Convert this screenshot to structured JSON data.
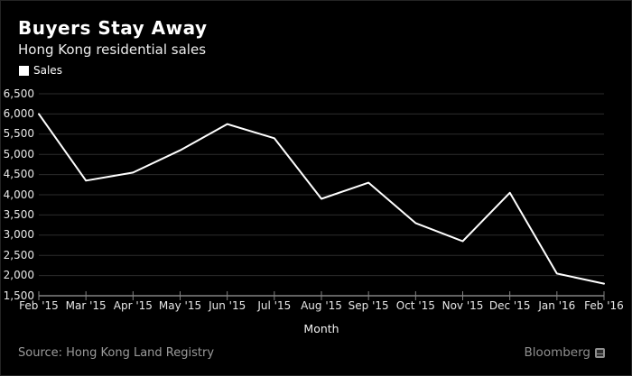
{
  "header": {
    "title": "Buyers Stay Away",
    "subtitle": "Hong Kong residential sales",
    "legend": {
      "label": "Sales",
      "swatch_color": "#ffffff"
    }
  },
  "chart_data": {
    "type": "line",
    "title": "Buyers Stay Away",
    "subtitle": "Hong Kong residential sales",
    "categories": [
      "Feb '15",
      "Mar '15",
      "Apr '15",
      "May '15",
      "Jun '15",
      "Jul '15",
      "Aug '15",
      "Sep '15",
      "Oct '15",
      "Nov '15",
      "Dec '15",
      "Jan '16",
      "Feb '16"
    ],
    "series": [
      {
        "name": "Sales",
        "color": "#ffffff",
        "values": [
          6000,
          4350,
          4550,
          5100,
          5750,
          5400,
          3900,
          4300,
          3300,
          2850,
          4050,
          2050,
          1800
        ]
      }
    ],
    "xlabel": "Month",
    "ylabel": "",
    "ylim": [
      1500,
      6500
    ],
    "y_tick_step": 500,
    "y_tick_labels_top_to_bottom": [
      "6,500",
      "6,000",
      "5,500",
      "5,000",
      "4,500",
      "4,000",
      "3,500",
      "3,000",
      "2,500",
      "2,000",
      "1,500"
    ],
    "grid": "horizontal",
    "legend_position": "top-left",
    "colors": {
      "background": "#000000",
      "line": "#ffffff",
      "gridline": "#2c2c2c",
      "axis": "#828282",
      "tick_label": "#e8e8e8"
    }
  },
  "footer": {
    "source": "Source: Hong Kong Land Registry",
    "brand": "Bloomberg"
  }
}
